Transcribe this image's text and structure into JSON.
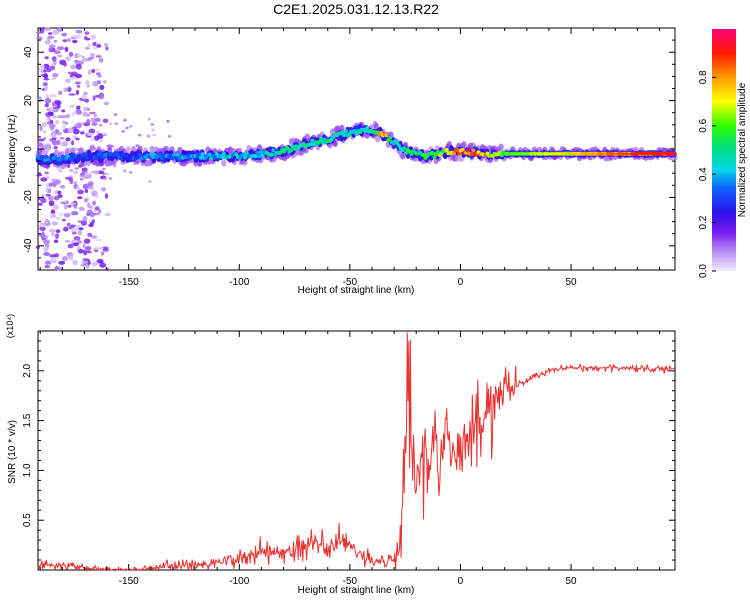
{
  "title": "C2E1.2025.031.12.13.R22",
  "chart_data": [
    {
      "type": "heatmap",
      "xlabel": "Height of straight line (km)",
      "ylabel": "Frequency (Hz)",
      "xlim": [
        -191,
        97
      ],
      "ylim": [
        -50,
        50
      ],
      "xticks": [
        -150,
        -100,
        -50,
        0,
        50
      ],
      "yticks": [
        -40,
        -20,
        0,
        20,
        40
      ],
      "colorbar": {
        "label": "Normalized spectral amplitude",
        "ticks": [
          0.0,
          0.2,
          0.4,
          0.6,
          0.8
        ],
        "range": [
          0,
          1
        ]
      },
      "ridge": [
        {
          "x": -191,
          "y": -4,
          "v": 0.35
        },
        {
          "x": -180,
          "y": -4,
          "v": 0.4
        },
        {
          "x": -170,
          "y": -3,
          "v": 0.3
        },
        {
          "x": -160,
          "y": -3,
          "v": 0.35
        },
        {
          "x": -150,
          "y": -3,
          "v": 0.3
        },
        {
          "x": -140,
          "y": -3,
          "v": 0.4
        },
        {
          "x": -130,
          "y": -3,
          "v": 0.38
        },
        {
          "x": -120,
          "y": -3,
          "v": 0.4
        },
        {
          "x": -110,
          "y": -3,
          "v": 0.42
        },
        {
          "x": -100,
          "y": -3,
          "v": 0.45
        },
        {
          "x": -90,
          "y": -2,
          "v": 0.45
        },
        {
          "x": -80,
          "y": -1,
          "v": 0.5
        },
        {
          "x": -70,
          "y": 2,
          "v": 0.5
        },
        {
          "x": -60,
          "y": 4,
          "v": 0.5
        },
        {
          "x": -50,
          "y": 7,
          "v": 0.45
        },
        {
          "x": -40,
          "y": 8,
          "v": 0.5
        },
        {
          "x": -35,
          "y": 6,
          "v": 0.85
        },
        {
          "x": -30,
          "y": 3,
          "v": 0.4
        },
        {
          "x": -25,
          "y": -1,
          "v": 0.55
        },
        {
          "x": -20,
          "y": -2,
          "v": 0.6
        },
        {
          "x": -15,
          "y": -3,
          "v": 0.55
        },
        {
          "x": -10,
          "y": -2,
          "v": 0.6
        },
        {
          "x": -5,
          "y": -1,
          "v": 0.7
        },
        {
          "x": 0,
          "y": -1,
          "v": 0.9
        },
        {
          "x": 10,
          "y": -2,
          "v": 0.8
        },
        {
          "x": 20,
          "y": -2,
          "v": 0.6
        },
        {
          "x": 30,
          "y": -2,
          "v": 0.65
        },
        {
          "x": 40,
          "y": -2,
          "v": 0.7
        },
        {
          "x": 50,
          "y": -2,
          "v": 0.75
        },
        {
          "x": 60,
          "y": -2,
          "v": 0.8
        },
        {
          "x": 70,
          "y": -2,
          "v": 0.85
        },
        {
          "x": 80,
          "y": -2,
          "v": 0.9
        },
        {
          "x": 97,
          "y": -2,
          "v": 0.95
        }
      ]
    },
    {
      "type": "line",
      "xlabel": "Height of straight line (km)",
      "ylabel": "SNR (10 * v/v)",
      "y_multiplier": "(x10⁴)",
      "xlim": [
        -191,
        97
      ],
      "ylim": [
        0,
        2.4
      ],
      "xticks": [
        -150,
        -100,
        -50,
        0,
        50
      ],
      "yticks": [
        0.5,
        1.0,
        1.5,
        2.0
      ],
      "color": "#e8302e",
      "series": [
        {
          "x": [
            -191,
            -180,
            -170,
            -160,
            -150,
            -140,
            -130,
            -120,
            -110,
            -100,
            -95,
            -90,
            -85,
            -80,
            -75,
            -70,
            -65,
            -60,
            -55,
            -50,
            -45,
            -40,
            -35,
            -30,
            -28,
            -26,
            -24,
            -22,
            -20,
            -18,
            -16,
            -14,
            -12,
            -10,
            -8,
            -6,
            -4,
            -2,
            0,
            2,
            4,
            6,
            8,
            10,
            12,
            14,
            16,
            18,
            20,
            25,
            30,
            35,
            40,
            45,
            50,
            60,
            70,
            80,
            97
          ],
          "y": [
            0.05,
            0.05,
            0.02,
            0.01,
            0.0,
            0.02,
            0.04,
            0.05,
            0.08,
            0.1,
            0.15,
            0.18,
            0.15,
            0.2,
            0.22,
            0.25,
            0.28,
            0.2,
            0.3,
            0.25,
            0.15,
            0.1,
            0.08,
            0.1,
            0.2,
            0.8,
            1.6,
            1.2,
            0.8,
            1.1,
            1.3,
            1.0,
            1.4,
            1.1,
            1.2,
            1.5,
            1.3,
            1.1,
            1.2,
            1.4,
            1.3,
            1.5,
            1.6,
            1.4,
            1.7,
            1.6,
            1.7,
            1.8,
            1.85,
            1.85,
            1.9,
            1.95,
            2.0,
            2.02,
            2.03,
            2.03,
            2.03,
            2.02,
            2.02
          ]
        }
      ]
    }
  ]
}
